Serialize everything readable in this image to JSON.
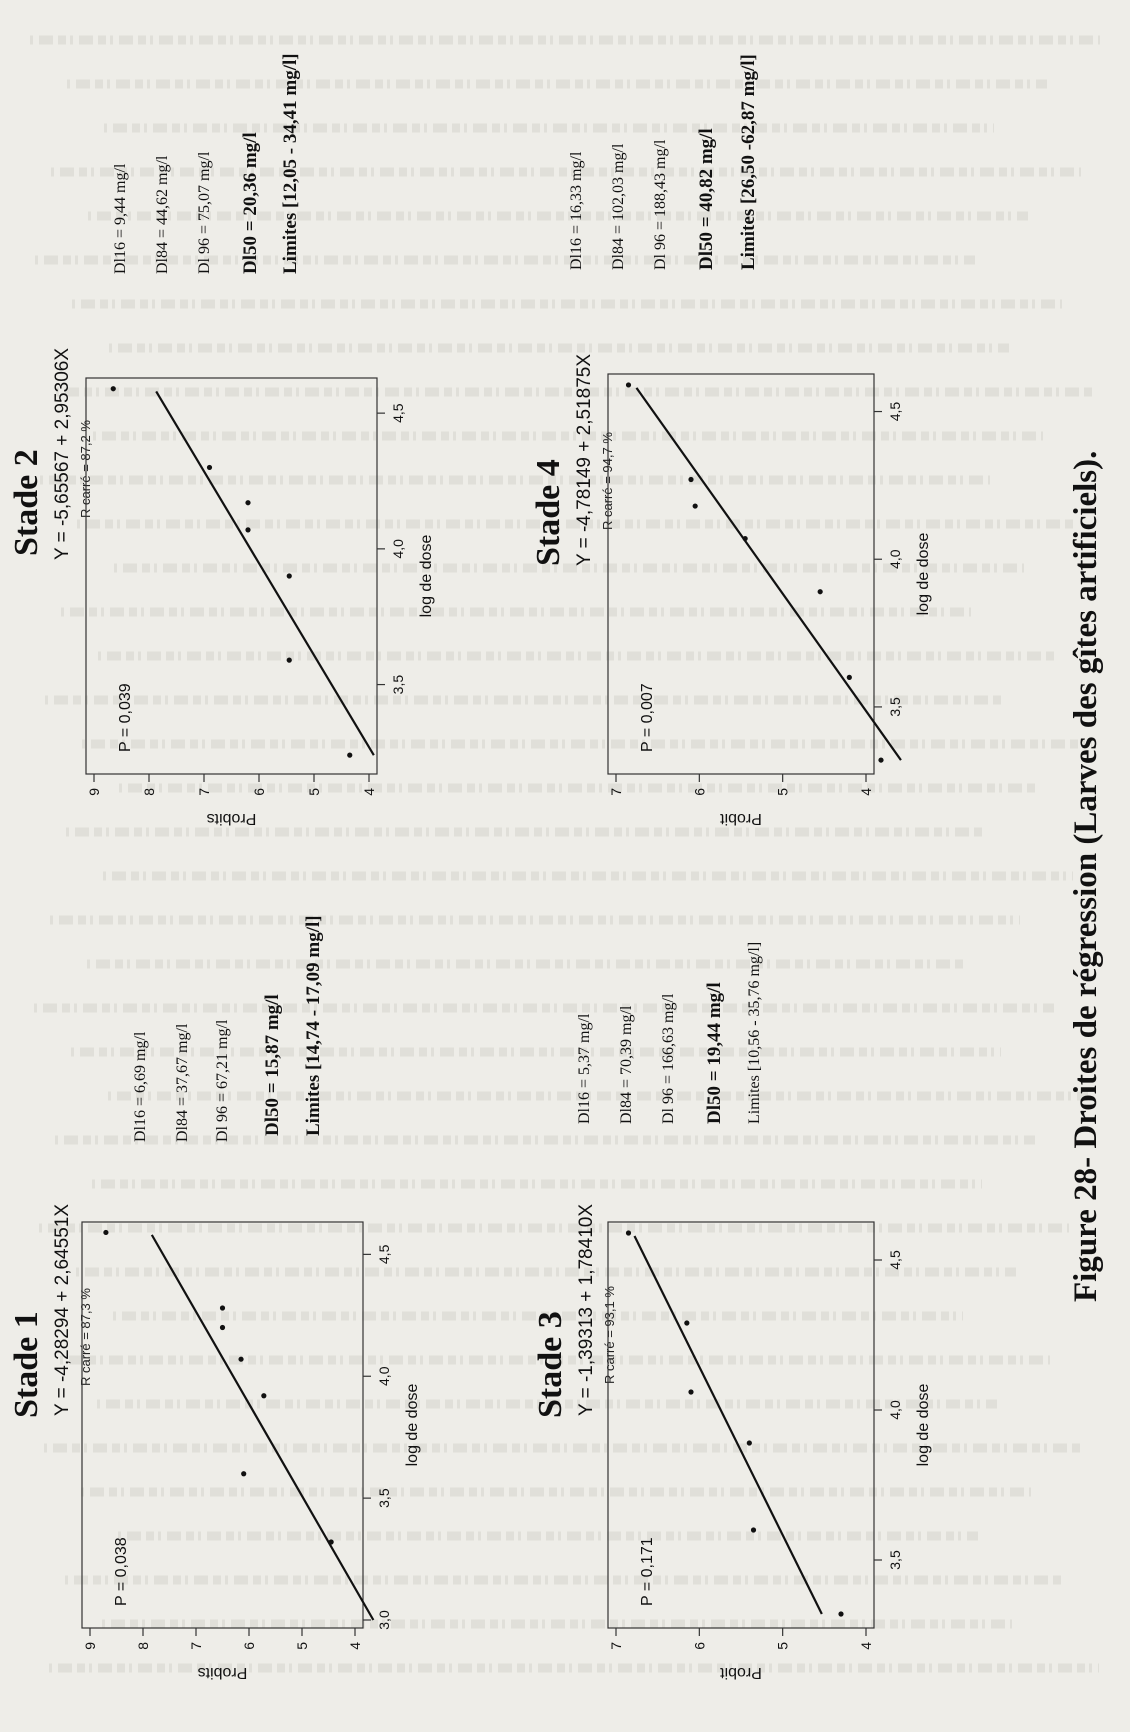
{
  "figure_caption": "Figure 28- Droites de régression (Larves des gîtes artificiels).",
  "background_text_color": "#c9c7c0",
  "chart_data": [
    {
      "type": "scatter",
      "title": "Stade 1",
      "equation": "Y = -4,28294 + 2,64551X",
      "r_squared": "R carré = 87,3 %",
      "p_value": "P = 0,038",
      "xlabel": "log de dose",
      "ylabel": "Probits",
      "xlim": [
        3.0,
        4.6
      ],
      "ylim": [
        4,
        9
      ],
      "xticks": [
        "3,0",
        "3,5",
        "4,0",
        "4,5"
      ],
      "xtick_values": [
        3.0,
        3.5,
        4.0,
        4.5
      ],
      "yticks": [
        "4",
        "5",
        "6",
        "7",
        "8",
        "9"
      ],
      "ytick_values": [
        4,
        5,
        6,
        7,
        8,
        9
      ],
      "points": [
        {
          "x": 3.32,
          "y": 4.45
        },
        {
          "x": 3.6,
          "y": 6.1
        },
        {
          "x": 3.92,
          "y": 5.72
        },
        {
          "x": 4.07,
          "y": 6.15
        },
        {
          "x": 4.2,
          "y": 6.5
        },
        {
          "x": 4.28,
          "y": 6.5
        },
        {
          "x": 4.59,
          "y": 8.7
        }
      ],
      "fit": {
        "intercept": -4.28294,
        "slope": 2.64551,
        "x_range": [
          3.0,
          4.58
        ]
      },
      "stats": [
        {
          "label": "Dl16 = 6,69 mg/l",
          "bold": false
        },
        {
          "label": "Dl84 = 37,67 mg/l",
          "bold": false
        },
        {
          "label": "Dl 96 = 67,21 mg/l",
          "bold": false
        },
        {
          "label": "Dl50 = 15,87 mg/l",
          "bold": true
        },
        {
          "label": "Limites [14,74 - 17,09 mg/l]",
          "bold": true
        }
      ]
    },
    {
      "type": "scatter",
      "title": "Stade 2",
      "equation": "Y = -5,65567 + 2,95306X",
      "r_squared": "R carré = 87,2 %",
      "p_value": "P = 0,039",
      "xlabel": "log de dose",
      "ylabel": "Probits",
      "xlim": [
        3.2,
        4.6
      ],
      "ylim": [
        4,
        9
      ],
      "xticks": [
        "3,5",
        "4,0",
        "4,5"
      ],
      "xtick_values": [
        3.5,
        4.0,
        4.5
      ],
      "yticks": [
        "4",
        "5",
        "6",
        "7",
        "8",
        "9"
      ],
      "ytick_values": [
        4,
        5,
        6,
        7,
        8,
        9
      ],
      "points": [
        {
          "x": 3.24,
          "y": 4.35
        },
        {
          "x": 3.59,
          "y": 5.45
        },
        {
          "x": 3.9,
          "y": 5.45
        },
        {
          "x": 4.07,
          "y": 6.2
        },
        {
          "x": 4.17,
          "y": 6.2
        },
        {
          "x": 4.3,
          "y": 6.9
        },
        {
          "x": 4.59,
          "y": 8.65
        }
      ],
      "fit": {
        "intercept": -5.65567,
        "slope": 2.95306,
        "x_range": [
          3.24,
          4.58
        ]
      },
      "stats": [
        {
          "label": "Dl16 = 9,44 mg/l",
          "bold": false
        },
        {
          "label": "Dl84 = 44,62 mg/l",
          "bold": false
        },
        {
          "label": "Dl 96 = 75,07 mg/l",
          "bold": false
        },
        {
          "label": "Dl50 = 20,36 mg/l",
          "bold": true
        },
        {
          "label": "Limites [12,05 - 34,41 mg/l]",
          "bold": true
        }
      ]
    },
    {
      "type": "scatter",
      "title": "Stade 3",
      "equation": "Y = -1,39313 + 1,78410X",
      "r_squared": "R carré = 93,1 %",
      "p_value": "P = 0,171",
      "xlabel": "log de dose",
      "ylabel": "Probit",
      "xlim": [
        3.3,
        4.6
      ],
      "ylim": [
        4,
        7
      ],
      "xticks": [
        "3,5",
        "4,0",
        "4,5"
      ],
      "xtick_values": [
        3.5,
        4.0,
        4.5
      ],
      "yticks": [
        "4",
        "5",
        "6",
        "7"
      ],
      "ytick_values": [
        4,
        5,
        6,
        7
      ],
      "points": [
        {
          "x": 3.32,
          "y": 4.3
        },
        {
          "x": 3.6,
          "y": 5.35
        },
        {
          "x": 3.89,
          "y": 5.4
        },
        {
          "x": 4.06,
          "y": 6.1
        },
        {
          "x": 4.29,
          "y": 6.15
        },
        {
          "x": 4.59,
          "y": 6.85
        }
      ],
      "fit": {
        "intercept": -1.39313,
        "slope": 1.7841,
        "x_range": [
          3.32,
          4.58
        ]
      },
      "stats": [
        {
          "label": "Dl16 = 5,37 mg/l",
          "bold": false
        },
        {
          "label": "Dl84 = 70,39 mg/l",
          "bold": false
        },
        {
          "label": "Dl 96 = 166,63 mg/l",
          "bold": false
        },
        {
          "label": "Dl50 = 19,44 mg/l",
          "bold": true
        },
        {
          "label": "Limites [10,56 - 35,76 mg/l]",
          "bold": false
        }
      ]
    },
    {
      "type": "scatter",
      "title": "Stade 4",
      "equation": "Y = -4,78149 + 2,51875X",
      "r_squared": "R carré = 94,7 %",
      "p_value": "P = 0,007",
      "xlabel": "log de dose",
      "ylabel": "Probit",
      "xlim": [
        3.3,
        4.6
      ],
      "ylim": [
        4,
        7
      ],
      "xticks": [
        "3,5",
        "4,0",
        "4,5"
      ],
      "xtick_values": [
        3.5,
        4.0,
        4.5
      ],
      "yticks": [
        "4",
        "5",
        "6",
        "7"
      ],
      "ytick_values": [
        4,
        5,
        6,
        7
      ],
      "points": [
        {
          "x": 3.32,
          "y": 3.82
        },
        {
          "x": 3.6,
          "y": 4.2
        },
        {
          "x": 3.89,
          "y": 4.55
        },
        {
          "x": 4.07,
          "y": 5.45
        },
        {
          "x": 4.18,
          "y": 6.05
        },
        {
          "x": 4.27,
          "y": 6.1
        },
        {
          "x": 4.59,
          "y": 6.85
        }
      ],
      "fit": {
        "intercept": -4.78149,
        "slope": 2.51875,
        "x_range": [
          3.32,
          4.58
        ]
      },
      "stats": [
        {
          "label": "Dl16 = 16,33 mg/l",
          "bold": false
        },
        {
          "label": "Dl84 = 102,03 mg/l",
          "bold": false
        },
        {
          "label": "Dl 96 = 188,43 mg/l",
          "bold": false
        },
        {
          "label": "Dl50 = 40,82 mg/l",
          "bold": true
        },
        {
          "label": "Limites [26,50 -62,87 mg/l]",
          "bold": true
        }
      ]
    }
  ]
}
